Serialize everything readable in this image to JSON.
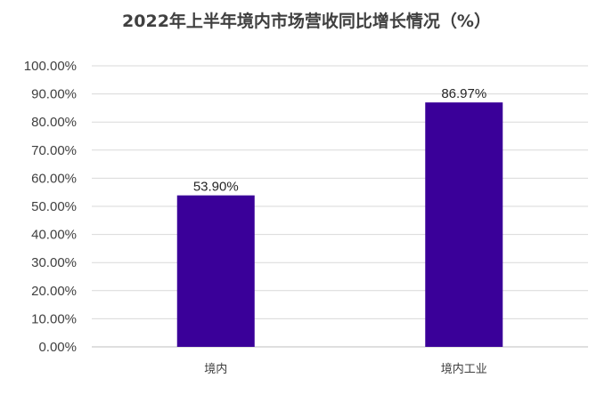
{
  "chart_data": {
    "type": "bar",
    "title": "2022年上半年境内市场营收同比增长情况（%）",
    "categories": [
      "境内",
      "境内工业"
    ],
    "values": [
      53.9,
      86.97
    ],
    "data_labels": [
      "53.90%",
      "86.97%"
    ],
    "ylim": [
      0,
      100
    ],
    "yticks": [
      0,
      10,
      20,
      30,
      40,
      50,
      60,
      70,
      80,
      90,
      100
    ],
    "ytick_labels": [
      "0.00%",
      "10.00%",
      "20.00%",
      "30.00%",
      "40.00%",
      "50.00%",
      "60.00%",
      "70.00%",
      "80.00%",
      "90.00%",
      "100.00%"
    ],
    "xlabel": "",
    "ylabel": "",
    "grid": true,
    "legend": "none",
    "bar_color": "#3a0099"
  }
}
